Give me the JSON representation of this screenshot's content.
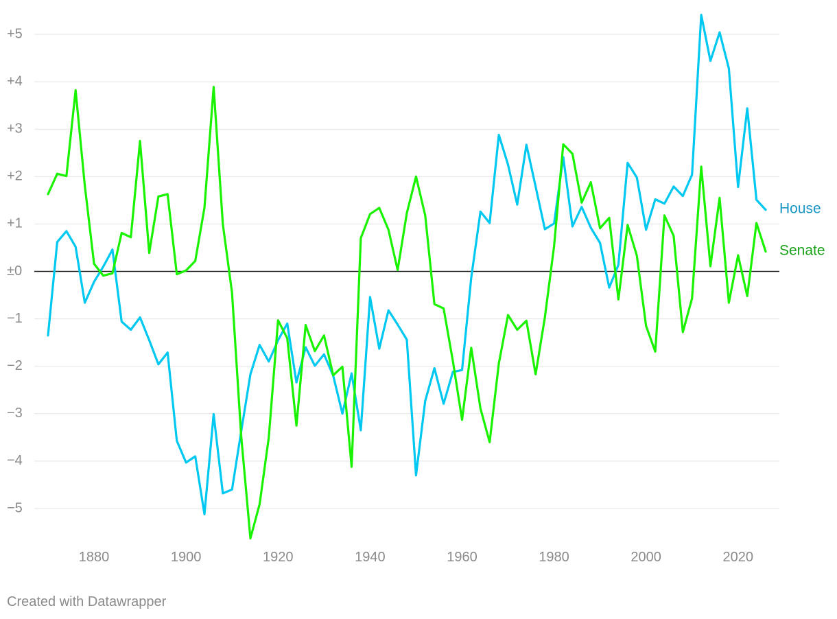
{
  "chart_data": {
    "type": "line",
    "title": "",
    "xlabel": "",
    "ylabel": "",
    "xlim": [
      1868,
      2028
    ],
    "ylim": [
      -5.5,
      5.5
    ],
    "yticks": [
      {
        "value": 5,
        "label": "+5"
      },
      {
        "value": 4,
        "label": "+4"
      },
      {
        "value": 3,
        "label": "+3"
      },
      {
        "value": 2,
        "label": "+2"
      },
      {
        "value": 1,
        "label": "+1"
      },
      {
        "value": 0,
        "label": "±0"
      },
      {
        "value": -1,
        "label": "−1"
      },
      {
        "value": -2,
        "label": "−2"
      },
      {
        "value": -3,
        "label": "−3"
      },
      {
        "value": -4,
        "label": "−4"
      },
      {
        "value": -5,
        "label": "−5"
      }
    ],
    "xticks": [
      1880,
      1900,
      1920,
      1940,
      1960,
      1980,
      2000,
      2020
    ],
    "zero_line": true,
    "grid": true,
    "series": [
      {
        "name": "House",
        "color": "#00c8f0",
        "label_color": "#1a96c8",
        "x": [
          1870,
          1872,
          1874,
          1876,
          1878,
          1880,
          1882,
          1884,
          1886,
          1888,
          1890,
          1892,
          1894,
          1896,
          1898,
          1900,
          1902,
          1904,
          1906,
          1908,
          1910,
          1912,
          1914,
          1916,
          1918,
          1920,
          1922,
          1924,
          1926,
          1928,
          1930,
          1932,
          1934,
          1936,
          1938,
          1940,
          1942,
          1944,
          1946,
          1948,
          1950,
          1952,
          1954,
          1956,
          1958,
          1960,
          1962,
          1964,
          1966,
          1968,
          1970,
          1972,
          1974,
          1976,
          1978,
          1980,
          1982,
          1984,
          1986,
          1988,
          1990,
          1992,
          1994,
          1996,
          1998,
          2000,
          2002,
          2004,
          2006,
          2008,
          2010,
          2012,
          2014,
          2016,
          2018,
          2020,
          2022,
          2024,
          2026
        ],
        "values": [
          -1.35,
          0.62,
          0.85,
          0.52,
          -0.66,
          -0.22,
          0.1,
          0.46,
          -1.06,
          -1.23,
          -0.97,
          -1.45,
          -1.96,
          -1.71,
          -3.57,
          -4.03,
          -3.9,
          -5.12,
          -3.01,
          -4.68,
          -4.6,
          -3.37,
          -2.17,
          -1.55,
          -1.9,
          -1.45,
          -1.1,
          -2.34,
          -1.6,
          -1.99,
          -1.75,
          -2.2,
          -3,
          -2.15,
          -3.35,
          -0.54,
          -1.63,
          -0.82,
          -1.12,
          -1.44,
          -4.3,
          -2.73,
          -2.04,
          -2.79,
          -2.12,
          -2.08,
          -0.13,
          1.26,
          1.02,
          2.88,
          2.25,
          1.41,
          2.67,
          1.79,
          0.89,
          1.01,
          2.41,
          0.95,
          1.36,
          0.92,
          0.6,
          -0.34,
          0.14,
          2.29,
          1.98,
          0.88,
          1.52,
          1.43,
          1.79,
          1.59,
          2.04,
          5.41,
          4.44,
          5.04,
          4.28,
          1.78,
          3.44,
          1.51,
          1.3
        ]
      },
      {
        "name": "Senate",
        "color": "#19f200",
        "label_color": "#1ca31c",
        "x": [
          1870,
          1872,
          1874,
          1876,
          1878,
          1880,
          1882,
          1884,
          1886,
          1888,
          1890,
          1892,
          1894,
          1896,
          1898,
          1900,
          1902,
          1904,
          1906,
          1908,
          1910,
          1912,
          1914,
          1916,
          1918,
          1920,
          1922,
          1924,
          1926,
          1928,
          1930,
          1932,
          1934,
          1936,
          1938,
          1940,
          1942,
          1944,
          1946,
          1948,
          1950,
          1952,
          1954,
          1956,
          1958,
          1960,
          1962,
          1964,
          1966,
          1968,
          1970,
          1972,
          1974,
          1976,
          1978,
          1980,
          1982,
          1984,
          1986,
          1988,
          1990,
          1992,
          1994,
          1996,
          1998,
          2000,
          2002,
          2004,
          2006,
          2008,
          2010,
          2012,
          2014,
          2016,
          2018,
          2020,
          2022,
          2024,
          2026
        ],
        "values": [
          1.63,
          2.06,
          2.01,
          3.82,
          1.81,
          0.16,
          -0.09,
          -0.04,
          0.81,
          0.72,
          2.75,
          0.39,
          1.58,
          1.63,
          -0.06,
          0.02,
          0.22,
          1.34,
          3.89,
          1,
          -0.45,
          -3.48,
          -5.63,
          -4.91,
          -3.5,
          -1.03,
          -1.41,
          -3.25,
          -1.13,
          -1.68,
          -1.35,
          -2.19,
          -2.01,
          -4.12,
          0.7,
          1.21,
          1.34,
          0.88,
          0.03,
          1.23,
          2,
          1.18,
          -0.69,
          -0.78,
          -1.89,
          -3.13,
          -1.61,
          -2.89,
          -3.6,
          -1.94,
          -0.92,
          -1.23,
          -1.04,
          -2.17,
          -0.97,
          0.53,
          2.68,
          2.48,
          1.45,
          1.88,
          0.91,
          1.13,
          -0.59,
          0.98,
          0.33,
          -1.15,
          -1.69,
          1.18,
          0.75,
          -1.28,
          -0.57,
          2.21,
          0.11,
          1.55,
          -0.66,
          0.34,
          -0.52,
          1.02,
          0.42
        ]
      }
    ]
  },
  "footer": {
    "credit": "Created with Datawrapper"
  }
}
